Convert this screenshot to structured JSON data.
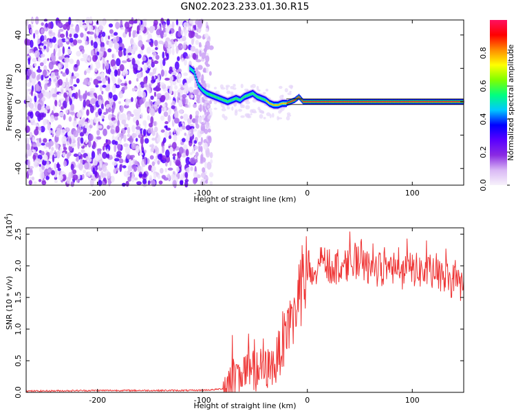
{
  "figure": {
    "title": "GN02.2023.233.01.30.R15"
  },
  "chart_data": [
    {
      "type": "heatmap",
      "xlabel": "Height of straight line (km)",
      "ylabel": "Frequency (Hz)",
      "xlim": [
        -268,
        149
      ],
      "ylim": [
        -50,
        49
      ],
      "xticks": [
        -200,
        -100,
        0,
        100
      ],
      "yticks": [
        -40,
        -20,
        0,
        20,
        40
      ],
      "colorbar": {
        "label": "Normalized spectral amplitude",
        "range": [
          0,
          1
        ],
        "ticks": [
          "0.0",
          "0.2",
          "0.4",
          "0.6",
          "0.8"
        ],
        "colormap": [
          "#f7f2fb",
          "#d9b8f5",
          "#8a2be2",
          "#5a00ff",
          "#0000ff",
          "#00c8ff",
          "#00ff7f",
          "#7fff00",
          "#ffff00",
          "#ff8c00",
          "#ff0000",
          "#ff1060"
        ]
      },
      "noise_region": {
        "x_start": -268,
        "x_end": -98
      },
      "signal_track": {
        "x": [
          -112,
          -108,
          -104,
          -100,
          -96,
          -92,
          -88,
          -84,
          -80,
          -76,
          -72,
          -68,
          -64,
          -60,
          -56,
          -52,
          -48,
          -44,
          -40,
          -36,
          -32,
          -28,
          -24,
          -20,
          -16,
          -12,
          -8,
          -4,
          0,
          20,
          40,
          60,
          80,
          100,
          120,
          149
        ],
        "y": [
          20,
          18,
          10,
          7,
          5,
          4,
          3,
          2,
          1,
          0,
          1,
          2,
          1,
          3,
          4,
          5,
          3,
          2,
          1,
          -1,
          -2,
          -2,
          -1,
          -1,
          0,
          1,
          3,
          0,
          0,
          0,
          0,
          0,
          0,
          0,
          0,
          0
        ]
      }
    },
    {
      "type": "line",
      "xlabel": "Height of straight line (km)",
      "ylabel": "SNR (10 * v/v)",
      "y_multiplier_label": "(x10",
      "y_multiplier_exp": "4",
      "y_multiplier_close": ")",
      "xlim": [
        -268,
        149
      ],
      "ylim": [
        0,
        2.6
      ],
      "xticks": [
        -200,
        -100,
        0,
        100
      ],
      "yticks": [
        "0.0",
        "0.5",
        "1.0",
        "1.5",
        "2.0",
        "2.5"
      ],
      "color": "#ee3333",
      "series": [
        {
          "x": [
            -268,
            -200,
            -150,
            -110,
            -90,
            -80,
            -75,
            -70,
            -65,
            -60,
            -55,
            -50,
            -45,
            -40,
            -35,
            -30,
            -25,
            -20,
            -15,
            -10,
            -5,
            0,
            5,
            10,
            15,
            20,
            25,
            30,
            35,
            40,
            45,
            50,
            60,
            70,
            80,
            90,
            100,
            110,
            120,
            130,
            140,
            149
          ],
          "y": [
            0.02,
            0.03,
            0.03,
            0.03,
            0.04,
            0.06,
            0.2,
            0.3,
            0.3,
            0.35,
            0.3,
            0.35,
            0.3,
            0.35,
            0.4,
            0.45,
            0.75,
            1.0,
            1.2,
            1.3,
            1.6,
            1.9,
            1.8,
            1.95,
            2.05,
            2.0,
            1.95,
            2.0,
            2.0,
            2.05,
            2.1,
            2.0,
            1.95,
            1.95,
            1.95,
            1.9,
            1.95,
            1.9,
            1.85,
            1.8,
            1.75,
            1.7
          ]
        }
      ]
    }
  ]
}
